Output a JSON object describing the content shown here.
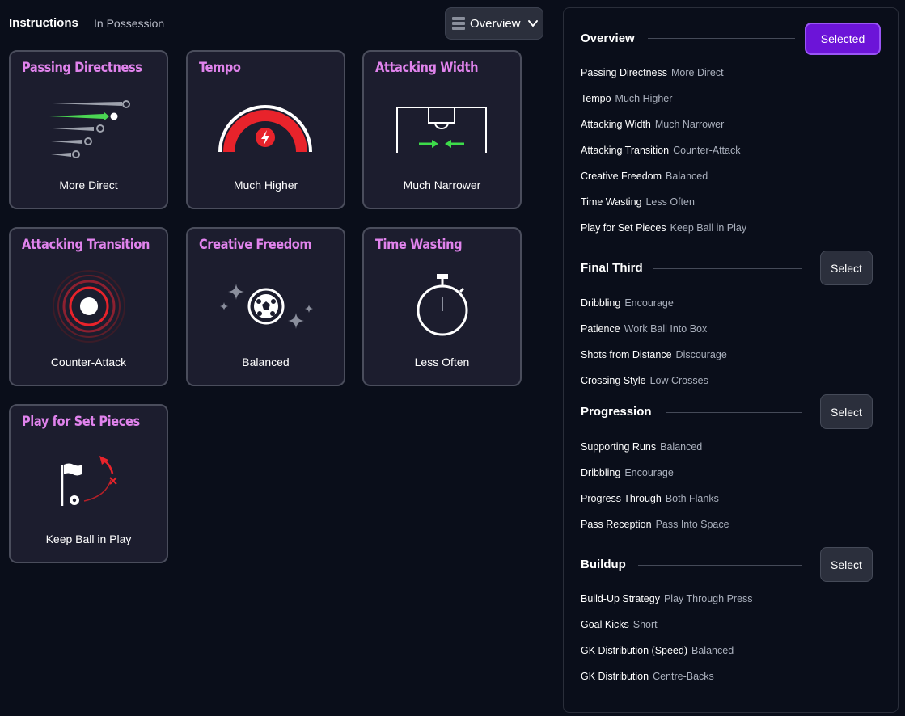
{
  "header": {
    "title": "Instructions",
    "subtitle": "In Possession",
    "view_label": "Overview"
  },
  "cards": [
    {
      "title": "Passing Directness",
      "value": "More Direct"
    },
    {
      "title": "Tempo",
      "value": "Much Higher"
    },
    {
      "title": "Attacking Width",
      "value": "Much Narrower"
    },
    {
      "title": "Attacking Transition",
      "value": "Counter-Attack"
    },
    {
      "title": "Creative Freedom",
      "value": "Balanced"
    },
    {
      "title": "Time Wasting",
      "value": "Less Often"
    },
    {
      "title": "Play for Set Pieces",
      "value": "Keep Ball in Play"
    }
  ],
  "panel": {
    "overview": {
      "title": "Overview",
      "button": "Selected",
      "rows": [
        {
          "k": "Passing Directness",
          "v": "More Direct"
        },
        {
          "k": "Tempo",
          "v": "Much Higher"
        },
        {
          "k": "Attacking Width",
          "v": "Much Narrower"
        },
        {
          "k": "Attacking Transition",
          "v": "Counter-Attack"
        },
        {
          "k": "Creative Freedom",
          "v": "Balanced"
        },
        {
          "k": "Time Wasting",
          "v": "Less Often"
        },
        {
          "k": "Play for Set Pieces",
          "v": "Keep Ball in Play"
        }
      ]
    },
    "final_third": {
      "title": "Final Third",
      "button": "Select",
      "rows": [
        {
          "k": "Dribbling",
          "v": "Encourage"
        },
        {
          "k": "Patience",
          "v": "Work Ball Into Box"
        },
        {
          "k": "Shots from Distance",
          "v": "Discourage"
        },
        {
          "k": "Crossing Style",
          "v": "Low Crosses"
        }
      ]
    },
    "progression": {
      "title": "Progression",
      "button": "Select",
      "rows": [
        {
          "k": "Supporting Runs",
          "v": "Balanced"
        },
        {
          "k": "Dribbling",
          "v": "Encourage"
        },
        {
          "k": "Progress Through",
          "v": "Both Flanks"
        },
        {
          "k": "Pass Reception",
          "v": "Pass Into Space"
        }
      ]
    },
    "buildup": {
      "title": "Buildup",
      "button": "Select",
      "rows": [
        {
          "k": "Build-Up Strategy",
          "v": "Play Through Press"
        },
        {
          "k": "Goal Kicks",
          "v": "Short"
        },
        {
          "k": "GK Distribution (Speed)",
          "v": "Balanced"
        },
        {
          "k": "GK Distribution",
          "v": "Centre-Backs"
        }
      ]
    }
  },
  "colors": {
    "accent_purple": "#6c14d8",
    "card_title": "#e083ec",
    "green": "#3ddc4a",
    "red": "#e8232b"
  },
  "icons": [
    "list-icon",
    "chevron-down-icon",
    "ball-arrows-icon",
    "speed-gauge-icon",
    "pitch-arrows-icon",
    "target-rings-icon",
    "ball-sparkle-icon",
    "stopwatch-icon",
    "corner-flag-icon"
  ]
}
